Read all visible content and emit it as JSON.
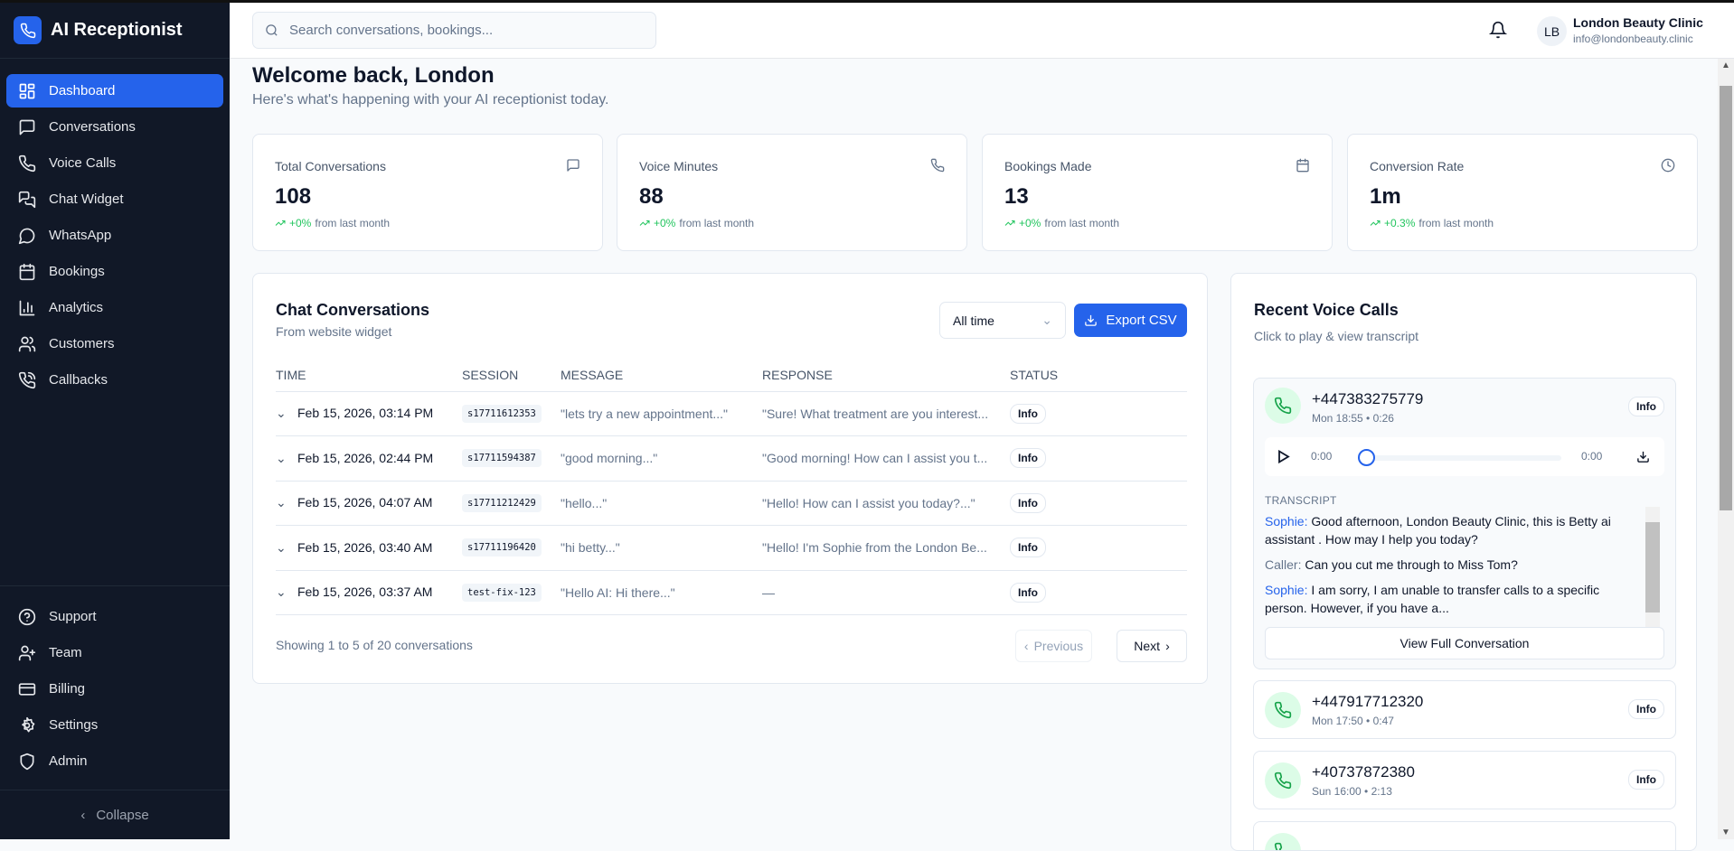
{
  "app": {
    "title": "AI Receptionist",
    "accent": "#2563eb"
  },
  "sidebar": {
    "items": [
      {
        "label": "Dashboard",
        "icon": "dashboard-icon",
        "active": true
      },
      {
        "label": "Conversations",
        "icon": "message-icon"
      },
      {
        "label": "Voice Calls",
        "icon": "phone-icon"
      },
      {
        "label": "Chat Widget",
        "icon": "chat-widget-icon"
      },
      {
        "label": "WhatsApp",
        "icon": "whatsapp-icon"
      },
      {
        "label": "Bookings",
        "icon": "calendar-icon"
      },
      {
        "label": "Analytics",
        "icon": "bar-chart-icon"
      },
      {
        "label": "Customers",
        "icon": "users-icon"
      },
      {
        "label": "Callbacks",
        "icon": "phone-callback-icon"
      }
    ],
    "bottom": [
      {
        "label": "Support",
        "icon": "help-circle-icon"
      },
      {
        "label": "Team",
        "icon": "user-plus-icon"
      },
      {
        "label": "Billing",
        "icon": "credit-card-icon"
      },
      {
        "label": "Settings",
        "icon": "gear-icon"
      },
      {
        "label": "Admin",
        "icon": "shield-icon"
      }
    ],
    "collapse": "Collapse"
  },
  "header": {
    "search_placeholder": "Search conversations, bookings...",
    "avatar": "LB",
    "user_name": "London Beauty Clinic",
    "user_email": "info@londonbeauty.clinic"
  },
  "welcome": {
    "title": "Welcome back, London",
    "subtitle": "Here's what's happening with your AI receptionist today."
  },
  "stats": [
    {
      "label": "Total Conversations",
      "value": "108",
      "change": "+0%",
      "suffix": "from last month",
      "icon": "message-icon"
    },
    {
      "label": "Voice Minutes",
      "value": "88",
      "change": "+0%",
      "suffix": "from last month",
      "icon": "phone-icon"
    },
    {
      "label": "Bookings Made",
      "value": "13",
      "change": "+0%",
      "suffix": "from last month",
      "icon": "calendar-icon"
    },
    {
      "label": "Conversion Rate",
      "value": "1m",
      "change": "+0.3%",
      "suffix": "from last month",
      "icon": "clock-icon"
    }
  ],
  "chat": {
    "title": "Chat Conversations",
    "subtitle": "From website widget",
    "filter": "All time",
    "export": "Export CSV",
    "columns": [
      "TIME",
      "SESSION",
      "MESSAGE",
      "RESPONSE",
      "STATUS"
    ],
    "rows": [
      {
        "time": "Feb 15, 2026, 03:14 PM",
        "session": "s17711612353",
        "message": "\"lets try a new appointment...\"",
        "response": "\"Sure! What treatment are you interest...",
        "status": "Info"
      },
      {
        "time": "Feb 15, 2026, 02:44 PM",
        "session": "s17711594387",
        "message": "\"good morning...\"",
        "response": "\"Good morning! How can I assist you t...",
        "status": "Info"
      },
      {
        "time": "Feb 15, 2026, 04:07 AM",
        "session": "s17711212429",
        "message": "\"hello...\"",
        "response": "\"Hello! How can I assist you today?...\"",
        "status": "Info"
      },
      {
        "time": "Feb 15, 2026, 03:40 AM",
        "session": "s17711196420",
        "message": "\"hi betty...\"",
        "response": "\"Hello! I'm Sophie from the London Be...",
        "status": "Info"
      },
      {
        "time": "Feb 15, 2026, 03:37 AM",
        "session": "test-fix-123",
        "message": "\"Hello AI: Hi there...\"",
        "response": "—",
        "status": "Info"
      }
    ],
    "footer": "Showing 1 to 5 of 20 conversations",
    "prev": "Previous",
    "next": "Next"
  },
  "voice": {
    "title": "Recent Voice Calls",
    "subtitle": "Click to play & view transcript",
    "calls": [
      {
        "number": "+447383275779",
        "meta": "Mon 18:55 • 0:26",
        "status": "Info"
      },
      {
        "number": "+447917712320",
        "meta": "Mon 17:50 • 0:47",
        "status": "Info"
      },
      {
        "number": "+40737872380",
        "meta": "Sun 16:00 • 2:13",
        "status": "Info"
      }
    ],
    "player": {
      "current": "0:00",
      "duration": "0:00",
      "progress": 0
    },
    "transcript_label": "TRANSCRIPT",
    "transcript": [
      {
        "speaker": "Sophie:",
        "text": " Good afternoon, London Beauty Clinic, this is Betty ai assistant . How may I help you today?"
      },
      {
        "speaker": "Caller:",
        "text": " Can you cut me through to Miss Tom?"
      },
      {
        "speaker": "Sophie:",
        "text": " I am sorry, I am unable to transfer calls to a specific person. However, if you have a..."
      }
    ],
    "view_full": "View Full Conversation"
  }
}
